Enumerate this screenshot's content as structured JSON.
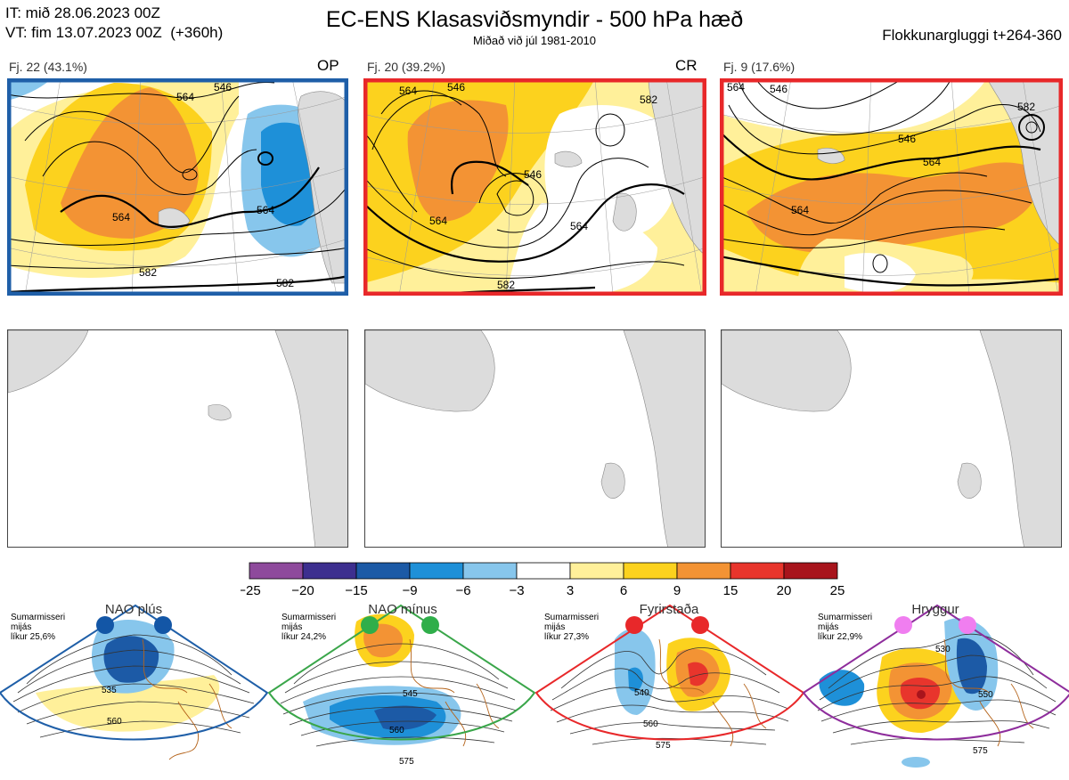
{
  "header": {
    "it_line": "IT: mið 28.06.2023 00Z",
    "vt_line": "VT: fim 13.07.2023 00Z  (+360h)",
    "title": "EC-ENS Klasasviðsmyndir - 500 hPa hæð",
    "subtitle": "Miðað við júl 1981-2010",
    "window": "Flokkunargluggi t+264-360"
  },
  "clusters": [
    {
      "label": "Fj. 22 (43.1%)",
      "tag": "OP",
      "frame_color": "#1f5fa8",
      "contour_labels": [
        "564",
        "546",
        "564",
        "564",
        "582",
        "582"
      ]
    },
    {
      "label": "Fj. 20 (39.2%)",
      "tag": "CR",
      "frame_color": "#e8282a",
      "contour_labels": [
        "546",
        "564",
        "546",
        "564",
        "564",
        "582",
        "582"
      ]
    },
    {
      "label": "Fj. 9 (17.6%)",
      "tag": "",
      "frame_color": "#e8282a",
      "contour_labels": [
        "546",
        "564",
        "546",
        "564",
        "564",
        "582"
      ]
    }
  ],
  "colorbar": {
    "ticks": [
      "−25",
      "−20",
      "−15",
      "−9",
      "−6",
      "−3",
      "3",
      "6",
      "9",
      "15",
      "20",
      "25"
    ],
    "colors": [
      "#8e4a9c",
      "#3d2f8f",
      "#1c5aa6",
      "#1e90d8",
      "#87c6ec",
      "#ffffff",
      "#fff09a",
      "#fcd21e",
      "#f39334",
      "#e8352c",
      "#a8141c"
    ]
  },
  "regimes": [
    {
      "name": "NAO plús",
      "season": "Sumarmisseri",
      "basis": "mijás",
      "prob": "líkur 25,6%",
      "frame_color": "#1f5fa8",
      "dot_color": "#1356a6",
      "contour_labels": [
        "535",
        "560"
      ]
    },
    {
      "name": "NAO mínus",
      "season": "Sumarmisseri",
      "basis": "mijás",
      "prob": "líkur 24,2%",
      "frame_color": "#3aa64a",
      "dot_color": "#2fae4a",
      "contour_labels": [
        "545",
        "560",
        "575"
      ]
    },
    {
      "name": "Fyrirstaða",
      "season": "Sumarmisseri",
      "basis": "mijás",
      "prob": "líkur 27,3%",
      "frame_color": "#e8282a",
      "dot_color": "#e8282a",
      "contour_labels": [
        "540",
        "560",
        "575"
      ]
    },
    {
      "name": "Hryggur",
      "season": "Sumarmisseri",
      "basis": "mijás",
      "prob": "líkur 22,9%",
      "frame_color": "#8e2d9c",
      "dot_color": "#f07ef0",
      "contour_labels": [
        "530",
        "550",
        "575"
      ]
    }
  ]
}
